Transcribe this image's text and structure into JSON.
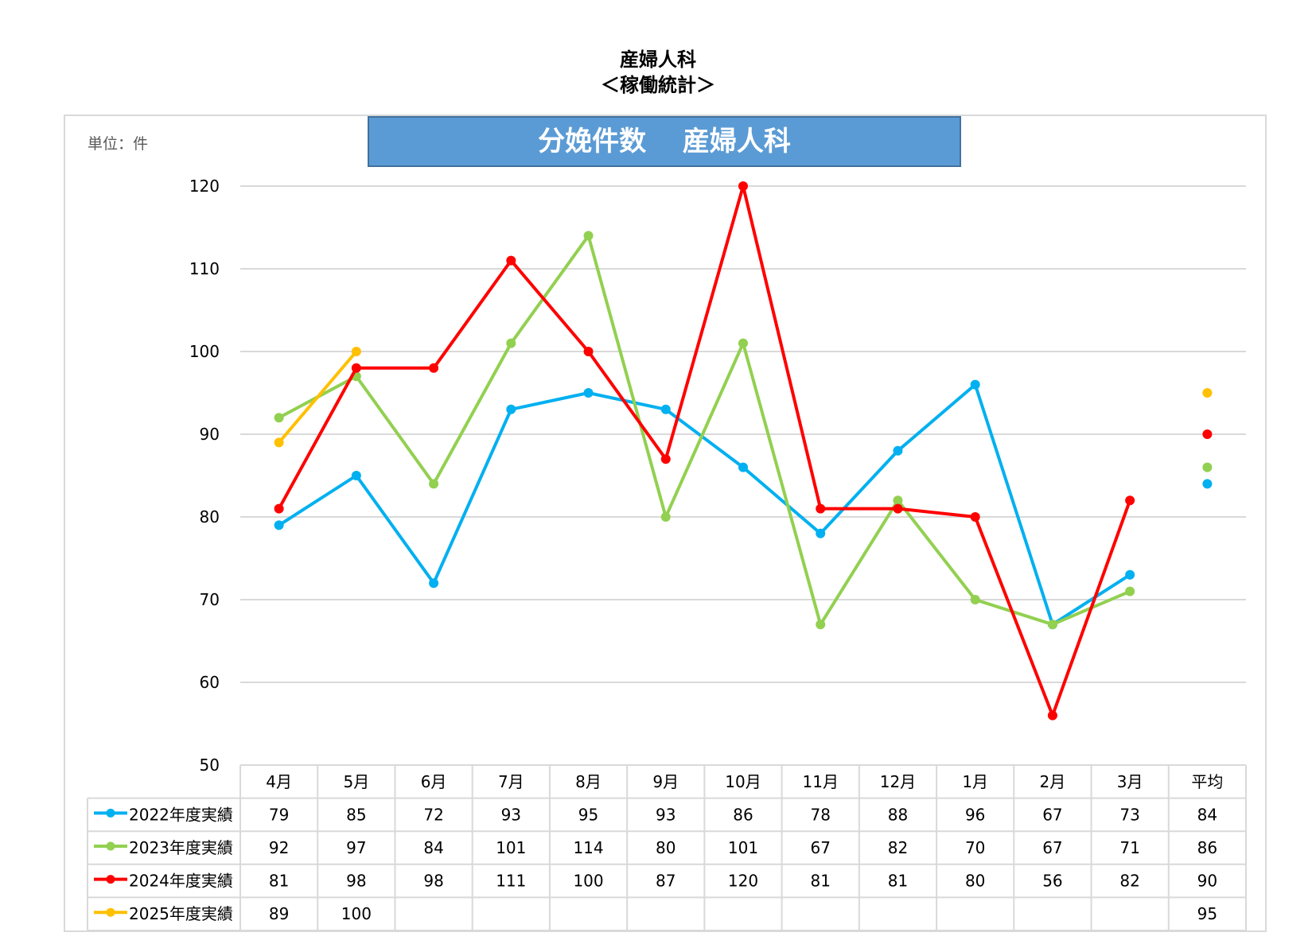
{
  "page": {
    "title_line1": "産婦人科",
    "title_line2": "＜稼働統計＞"
  },
  "chart_data": {
    "type": "line",
    "title": "分娩件数　 産婦人科",
    "unit_label": "単位：件",
    "ylim": [
      50,
      120
    ],
    "yticks": [
      50,
      60,
      70,
      80,
      90,
      100,
      110,
      120
    ],
    "grid": true,
    "categories": [
      "4月",
      "5月",
      "6月",
      "7月",
      "8月",
      "9月",
      "10月",
      "11月",
      "12月",
      "1月",
      "2月",
      "3月"
    ],
    "average_label": "平均",
    "series": [
      {
        "name": "2022年度実績",
        "color": "#00b0f0",
        "values": [
          79,
          85,
          72,
          93,
          95,
          93,
          86,
          78,
          88,
          96,
          67,
          73
        ],
        "average": 84
      },
      {
        "name": "2023年度実績",
        "color": "#92d050",
        "values": [
          92,
          97,
          84,
          101,
          114,
          80,
          101,
          67,
          82,
          70,
          67,
          71
        ],
        "average": 86
      },
      {
        "name": "2024年度実績",
        "color": "#ff0000",
        "values": [
          81,
          98,
          98,
          111,
          100,
          87,
          120,
          81,
          81,
          80,
          56,
          82
        ],
        "average": 90
      },
      {
        "name": "2025年度実績",
        "color": "#ffc000",
        "values": [
          89,
          100,
          null,
          null,
          null,
          null,
          null,
          null,
          null,
          null,
          null,
          null
        ],
        "average": 95
      }
    ]
  }
}
